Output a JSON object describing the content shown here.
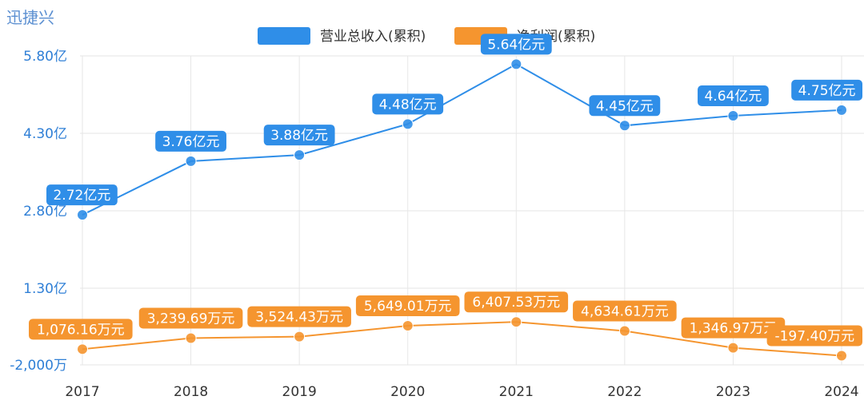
{
  "company_name": "迅捷兴",
  "chart_data": {
    "type": "line",
    "categories": [
      "2017",
      "2018",
      "2019",
      "2020",
      "2021",
      "2022",
      "2023",
      "2024"
    ],
    "y_axis_ticks": [
      "5.80亿",
      "4.30亿",
      "2.80亿",
      "1.30亿",
      "-2,000万"
    ],
    "grid": true,
    "legend_position": "top-center",
    "series": [
      {
        "name": "营业总收入(累积)",
        "color": "#2f8ee8",
        "unit": "亿元",
        "values": [
          2.72,
          3.76,
          3.88,
          4.48,
          5.64,
          4.45,
          4.64,
          4.75
        ],
        "labels": [
          "2.72亿元",
          "3.76亿元",
          "3.88亿元",
          "4.48亿元",
          "5.64亿元",
          "4.45亿元",
          "4.64亿元",
          "4.75亿元"
        ]
      },
      {
        "name": "净利润(累积)",
        "color": "#f5952f",
        "unit": "万元",
        "values": [
          1076.16,
          3239.69,
          3524.43,
          5649.01,
          6407.53,
          4634.61,
          1346.97,
          -197.4
        ],
        "labels": [
          "1,076.16万元",
          "3,239.69万元",
          "3,524.43万元",
          "5,649.01万元",
          "6,407.53万元",
          "4,634.61万元",
          "1,346.97万元",
          "-197.40万元"
        ]
      }
    ]
  }
}
